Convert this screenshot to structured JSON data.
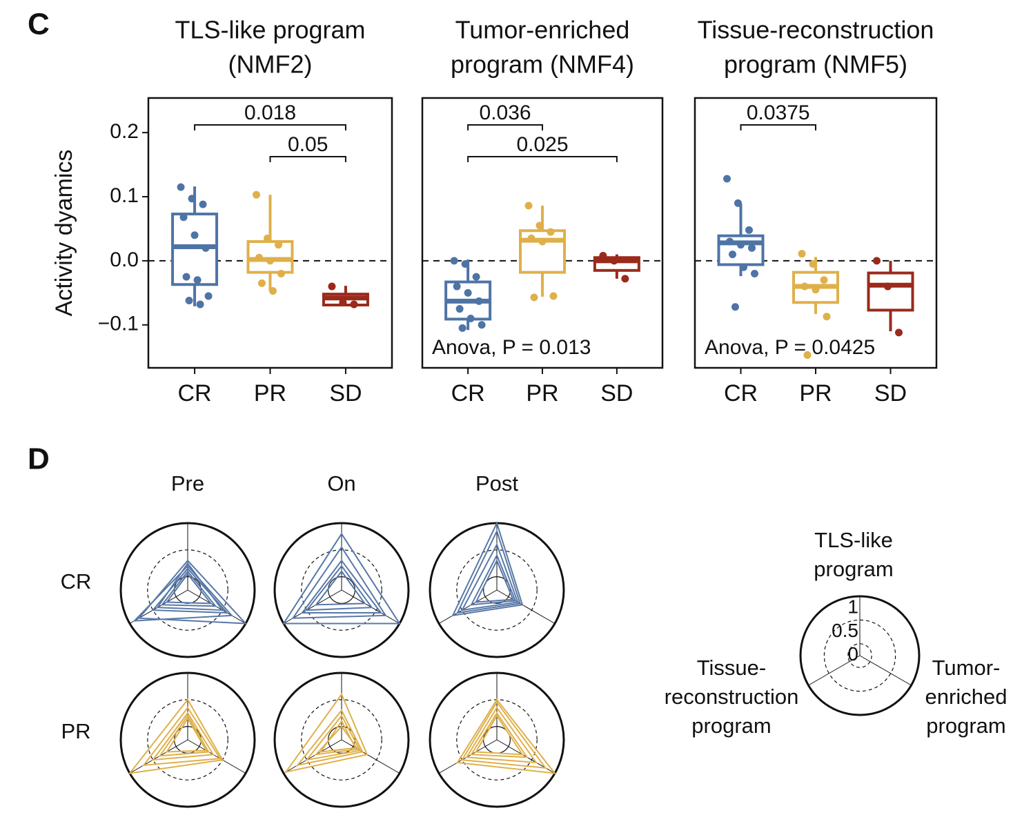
{
  "labels": [
    "C",
    "D"
  ],
  "chart_data": [
    {
      "type": "box",
      "title": [
        "TLS-like program",
        "(NMF2)"
      ],
      "ylabel": "Activity dyamics",
      "categories": [
        "CR",
        "PR",
        "SD"
      ],
      "colors": [
        "#4e74a6",
        "#dfb04a",
        "#9a2a1b"
      ],
      "ylim": [
        -0.167,
        0.254
      ],
      "yticks": [
        0.2,
        0.1,
        {
          "value": 0,
          "label": "0.0"
        },
        {
          "value": -0.1,
          "label": "−0.1"
        }
      ],
      "hline": 0,
      "boxes": [
        {
          "whislo": -0.071,
          "q1": -0.037,
          "med": 0.022,
          "q3": 0.073,
          "whishi": 0.116,
          "points": [
            0.115,
            0.097,
            0.088,
            0.068,
            0.04,
            0.02,
            -0.025,
            -0.03,
            -0.055,
            -0.062,
            -0.068
          ]
        },
        {
          "whislo": -0.047,
          "q1": -0.018,
          "med": 0.002,
          "q3": 0.03,
          "whishi": 0.103,
          "points": [
            0.103,
            0.035,
            0.025,
            0.005,
            0.0,
            -0.02,
            -0.035,
            -0.047
          ]
        },
        {
          "whislo": -0.069,
          "q1": -0.069,
          "med": -0.058,
          "q3": -0.052,
          "whishi": -0.039,
          "points": [
            -0.04,
            -0.065,
            -0.068
          ]
        }
      ],
      "brackets": [
        {
          "label": "0.018",
          "from": "CR",
          "to": "SD"
        },
        {
          "label": "0.05",
          "from": "PR",
          "to": "SD"
        }
      ]
    },
    {
      "type": "box",
      "title": [
        "Tumor-enriched",
        "program (NMF4)"
      ],
      "categories": [
        "CR",
        "PR",
        "SD"
      ],
      "colors": [
        "#4e74a6",
        "#dfb04a",
        "#9a2a1b"
      ],
      "ylim": [
        -0.167,
        0.254
      ],
      "hline": 0,
      "boxes": [
        {
          "whislo": -0.108,
          "q1": -0.091,
          "med": -0.063,
          "q3": -0.033,
          "whishi": 0.002,
          "points": [
            0.0,
            -0.005,
            -0.025,
            -0.04,
            -0.05,
            -0.063,
            -0.075,
            -0.09,
            -0.1,
            -0.105
          ]
        },
        {
          "whislo": -0.056,
          "q1": -0.018,
          "med": 0.032,
          "q3": 0.047,
          "whishi": 0.086,
          "points": [
            0.086,
            0.055,
            0.045,
            0.035,
            0.03,
            -0.055,
            -0.057
          ]
        },
        {
          "whislo": -0.028,
          "q1": -0.015,
          "med": 0.0,
          "q3": 0.005,
          "whishi": 0.01,
          "points": [
            0.008,
            0.0,
            -0.028
          ]
        }
      ],
      "brackets": [
        {
          "label": "0.036",
          "from": "CR",
          "to": "PR"
        },
        {
          "label": "0.025",
          "from": "CR",
          "to": "SD"
        }
      ],
      "annotation": "Anova, P = 0.013"
    },
    {
      "type": "box",
      "title": [
        "Tissue-reconstruction",
        "program (NMF5)"
      ],
      "categories": [
        "CR",
        "PR",
        "SD"
      ],
      "colors": [
        "#4e74a6",
        "#dfb04a",
        "#9a2a1b"
      ],
      "ylim": [
        -0.167,
        0.254
      ],
      "hline": 0,
      "boxes": [
        {
          "whislo": -0.024,
          "q1": -0.006,
          "med": 0.028,
          "q3": 0.039,
          "whishi": 0.089,
          "points": [
            0.128,
            0.09,
            0.048,
            0.03,
            0.025,
            0.02,
            0.01,
            -0.01,
            -0.02,
            -0.072
          ]
        },
        {
          "whislo": -0.083,
          "q1": -0.065,
          "med": -0.04,
          "q3": -0.018,
          "whishi": 0.006,
          "points": [
            0.011,
            -0.005,
            -0.03,
            -0.04,
            -0.045,
            -0.087,
            -0.147
          ]
        },
        {
          "whislo": -0.11,
          "q1": -0.077,
          "med": -0.038,
          "q3": -0.019,
          "whishi": 0.0,
          "points": [
            0.0,
            -0.04,
            -0.112
          ]
        }
      ],
      "brackets": [
        {
          "label": "0.0375",
          "from": "CR",
          "to": "PR"
        }
      ],
      "annotation": "Anova, P = 0.0425"
    },
    {
      "type": "radar",
      "axes": [
        [
          "TLS-like",
          "program"
        ],
        [
          "Tumor-",
          "enriched",
          "program"
        ],
        [
          "Tissue-",
          "reconstruction",
          "program"
        ]
      ],
      "rlim": [
        -0.25,
        1
      ],
      "rticks": [
        1,
        0.5,
        0
      ],
      "columns": [
        "Pre",
        "On",
        "Post"
      ],
      "rows": [
        {
          "name": "CR",
          "color": "#5878a8",
          "panels": [
            [
              [
                0.3,
                1.0,
                0.8
              ],
              [
                0.2,
                0.7,
                0.9
              ],
              [
                0.15,
                0.6,
                0.5
              ],
              [
                0.25,
                0.5,
                0.4
              ],
              [
                0.1,
                0.35,
                0.3
              ],
              [
                0.05,
                0.25,
                0.2
              ]
            ],
            [
              [
                0.8,
                1.0,
                1.0
              ],
              [
                0.55,
                0.7,
                0.8
              ],
              [
                0.3,
                0.6,
                0.6
              ],
              [
                0.2,
                0.4,
                0.5
              ],
              [
                0.1,
                0.25,
                0.3
              ]
            ],
            [
              [
                1.0,
                0.3,
                0.7
              ],
              [
                0.85,
                0.25,
                0.6
              ],
              [
                0.6,
                0.2,
                0.5
              ],
              [
                0.4,
                0.15,
                0.3
              ],
              [
                0.3,
                0.1,
                0.2
              ]
            ]
          ]
        },
        {
          "name": "PR",
          "color": "#dfb04a",
          "panels": [
            [
              [
                0.5,
                0.5,
                1.0
              ],
              [
                0.35,
                0.45,
                0.7
              ],
              [
                0.25,
                0.3,
                0.5
              ],
              [
                0.2,
                0.2,
                0.35
              ],
              [
                0.15,
                0.15,
                0.2
              ]
            ],
            [
              [
                0.6,
                0.3,
                0.95
              ],
              [
                0.3,
                0.2,
                0.7
              ],
              [
                0.2,
                0.15,
                0.5
              ],
              [
                0.0,
                0.1,
                0.3
              ],
              [
                0.1,
                0.05,
                0.2
              ]
            ],
            [
              [
                0.5,
                1.0,
                0.6
              ],
              [
                0.45,
                0.8,
                0.5
              ],
              [
                0.35,
                0.6,
                0.4
              ],
              [
                0.25,
                0.4,
                0.3
              ],
              [
                0.2,
                0.3,
                0.2
              ]
            ]
          ]
        }
      ]
    }
  ]
}
